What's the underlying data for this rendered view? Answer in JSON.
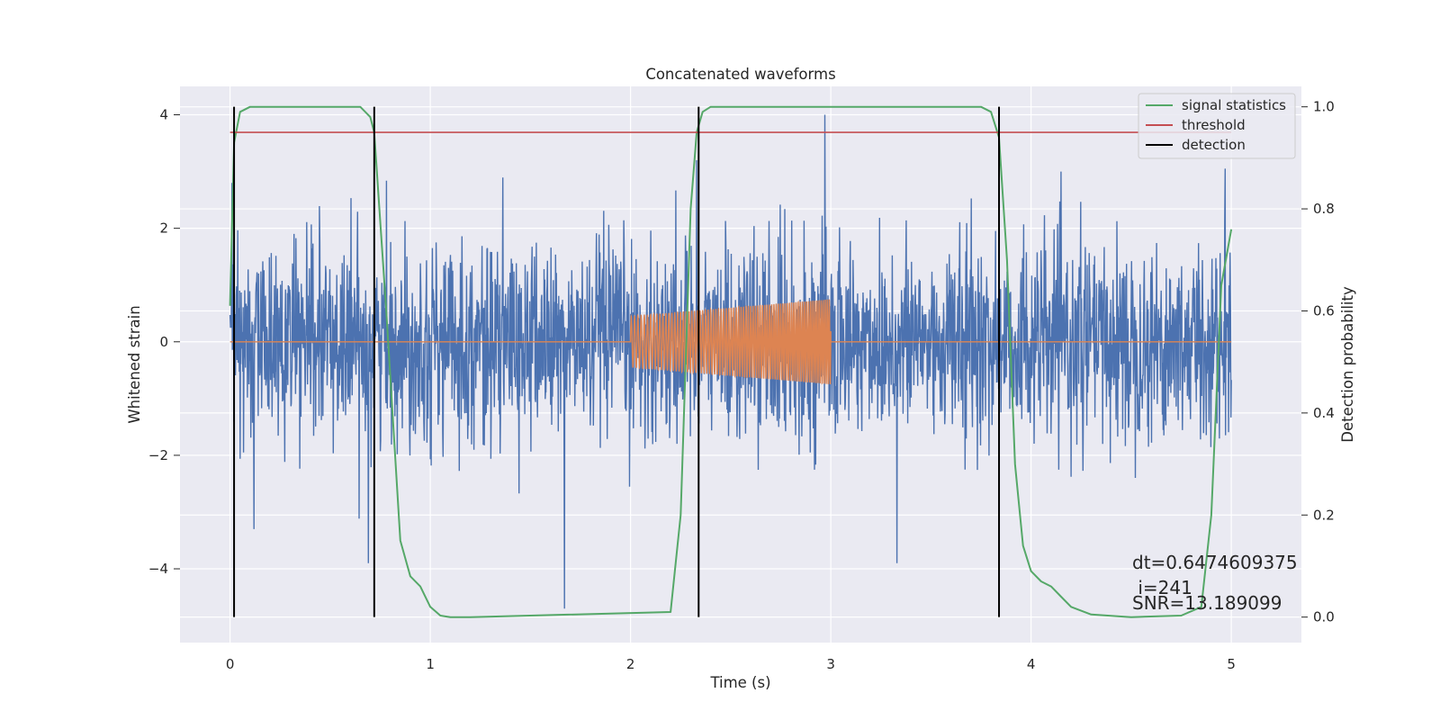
{
  "chart_data": {
    "type": "line",
    "title": "Concatenated waveforms",
    "xlabel": "Time (s)",
    "ylabel": "Whitened strain",
    "y2label": "Detection probability",
    "xlim": [
      -0.25,
      5.35
    ],
    "ylim": [
      -5.3,
      4.5
    ],
    "y2lim": [
      -0.05,
      1.04
    ],
    "x_ticks": [
      0,
      1,
      2,
      3,
      4,
      5
    ],
    "y_ticks": [
      -4,
      -2,
      0,
      2,
      4
    ],
    "y2_ticks": [
      0.0,
      0.2,
      0.4,
      0.6,
      0.8,
      1.0
    ],
    "x_tick_labels": [
      "0",
      "1",
      "2",
      "3",
      "4",
      "5"
    ],
    "y_tick_labels": [
      "−4",
      "−2",
      "0",
      "2",
      "4"
    ],
    "y2_tick_labels": [
      "0.0",
      "0.2",
      "0.4",
      "0.6",
      "0.8",
      "1.0"
    ],
    "grid": true,
    "legend_position": "top-right",
    "colors": {
      "noisy_strain": "#4c72b0",
      "injected_signal": "#dd8452",
      "signal_statistics": "#55a868",
      "threshold": "#c44e52",
      "detection": "#000000",
      "axes_bg": "#eaeaf2",
      "grid": "#ffffff"
    },
    "series": [
      {
        "key": "noisy_strain",
        "axis": "left",
        "x_range": [
          0,
          5
        ],
        "std": 0.85,
        "extreme_values": [
          {
            "x": 0.01,
            "y": 2.8
          },
          {
            "x": 0.12,
            "y": -3.3
          },
          {
            "x": 0.69,
            "y": -3.9
          },
          {
            "x": 1.67,
            "y": -4.7
          },
          {
            "x": 2.33,
            "y": 3.2
          },
          {
            "x": 2.97,
            "y": 4.0
          },
          {
            "x": 3.33,
            "y": -3.9
          },
          {
            "x": 4.97,
            "y": 3.05
          }
        ]
      },
      {
        "key": "injected_signal",
        "axis": "left",
        "x_range": [
          0,
          5
        ],
        "chirp_start": 2.0,
        "chirp_end": 3.0,
        "amplitude_start": 0.45,
        "amplitude_end": 0.75
      },
      {
        "key": "signal_statistics",
        "name": "signal statistics",
        "axis": "right",
        "x": [
          0.0,
          0.02,
          0.05,
          0.1,
          0.65,
          0.7,
          0.72,
          0.78,
          0.85,
          0.9,
          0.95,
          1.0,
          1.05,
          1.1,
          1.2,
          2.2,
          2.25,
          2.3,
          2.33,
          2.36,
          2.4,
          2.45,
          3.75,
          3.8,
          3.84,
          3.88,
          3.92,
          3.96,
          4.0,
          4.05,
          4.1,
          4.15,
          4.2,
          4.3,
          4.5,
          4.75,
          4.85,
          4.9,
          4.95,
          5.0
        ],
        "values": [
          0.61,
          0.93,
          0.99,
          1.0,
          1.0,
          0.98,
          0.95,
          0.6,
          0.15,
          0.08,
          0.06,
          0.02,
          0.003,
          0.0,
          0.0,
          0.01,
          0.2,
          0.8,
          0.95,
          0.99,
          1.0,
          1.0,
          1.0,
          0.99,
          0.94,
          0.7,
          0.3,
          0.14,
          0.09,
          0.07,
          0.06,
          0.04,
          0.02,
          0.005,
          0.0,
          0.003,
          0.02,
          0.2,
          0.65,
          0.76
        ]
      },
      {
        "key": "threshold",
        "name": "threshold",
        "axis": "right",
        "x": [
          0.0,
          5.0
        ],
        "values": [
          0.95,
          0.95
        ]
      },
      {
        "key": "detection",
        "name": "detection",
        "axis": "right",
        "x": [
          0.02,
          0.72,
          2.34,
          3.84
        ],
        "y_range": [
          0.0,
          1.0
        ]
      }
    ],
    "annotation": {
      "x": 4.5,
      "lines": [
        "dt=0.6474609375",
        " i=241",
        "SNR=13.189099"
      ]
    },
    "legend": [
      "signal statistics",
      "threshold",
      "detection"
    ]
  }
}
